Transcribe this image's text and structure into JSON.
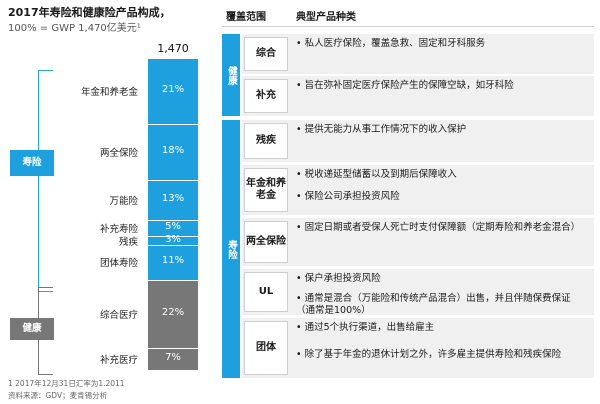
{
  "title": "2017年寿险和健康险产品构成，",
  "subtitle": "100% = GWP 1,470亿美元¹",
  "chart_data": {
    "type": "bar",
    "title": "2017年寿险和健康险产品构成，",
    "total_label": "1,470",
    "categories": [
      "年金和养老金",
      "两全保险",
      "万能险",
      "补充寿险",
      "残疾",
      "团体寿险",
      "综合医疗",
      "补充医疗"
    ],
    "values": [
      21,
      18,
      13,
      5,
      3,
      11,
      22,
      7
    ],
    "value_labels": [
      "21%",
      "18%",
      "13%",
      "5%",
      "3%",
      "11%",
      "22%",
      "7%"
    ],
    "groups": [
      {
        "name": "寿险",
        "categories": [
          "年金和养老金",
          "两全保险",
          "万能险",
          "补充寿险",
          "残疾",
          "团体寿险"
        ],
        "color": "#1fa0de"
      },
      {
        "name": "健康",
        "categories": [
          "综合医疗",
          "补充医疗"
        ],
        "color": "#777777"
      }
    ],
    "unit": "%"
  },
  "table": {
    "col1_header": "覆盖范围",
    "col2_header": "典型产品种类",
    "sections": [
      {
        "band_label": "健康",
        "rows": [
          {
            "label": "综合",
            "bullets": [
              "私人医疗保险，覆盖急救、固定和牙科服务"
            ]
          },
          {
            "label": "补充",
            "bullets": [
              "旨在弥补固定医疗保险产生的保障空缺，如牙科险"
            ]
          }
        ]
      },
      {
        "band_label": "寿险",
        "rows": [
          {
            "label": "残疾",
            "bullets": [
              "提供无能力从事工作情况下的收入保护"
            ]
          },
          {
            "label": "年金和养老金",
            "bullets": [
              "税收递延型储蓄以及到期后保障收入",
              "保险公司承担投资风险"
            ]
          },
          {
            "label": "两全保险",
            "bullets": [
              "固定日期或者受保人死亡时支付保障额（定期寿险和养老金混合）"
            ]
          },
          {
            "label": "UL",
            "bullets": [
              "保户承担投资风险",
              "通常是混合（万能险和传统产品混合）出售，并且伴随保费保证（通常是100%）"
            ]
          },
          {
            "label": "团体",
            "bullets": [
              "通过5个执行渠道，出售给雇主",
              "除了基于年金的退休计划之外，许多雇主提供寿险和残疾保险"
            ]
          }
        ]
      }
    ]
  },
  "footnotes": {
    "note1": "1 2017年12月31日汇率为1.2011",
    "source": "资料来源：GDV；麦肯锡分析"
  }
}
